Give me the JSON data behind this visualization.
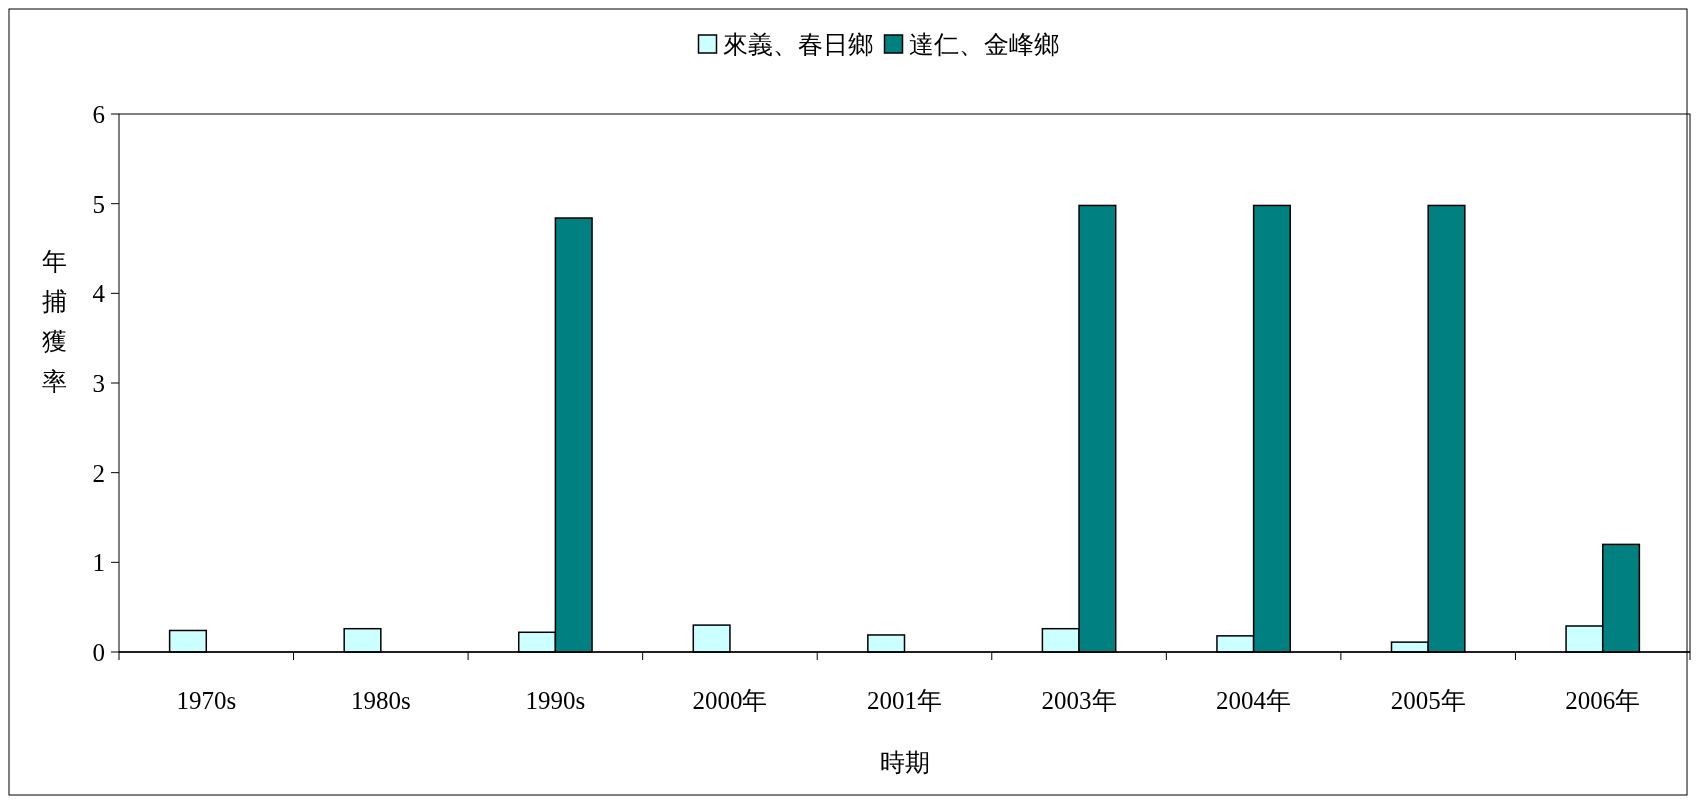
{
  "chart_data": {
    "type": "bar",
    "xlabel": "時期",
    "ylabel": "年捕獲率",
    "categories": [
      "1970s",
      "1980s",
      "1990s",
      "2000年",
      "2001年",
      "2003年",
      "2004年",
      "2005年",
      "2006年"
    ],
    "series": [
      {
        "name": "來義、春日鄉",
        "color": "#ccffff",
        "values": [
          0.24,
          0.26,
          0.22,
          0.3,
          0.19,
          0.26,
          0.18,
          0.11,
          0.29
        ]
      },
      {
        "name": "達仁、金峰鄉",
        "color": "#008080",
        "values": [
          0,
          0,
          4.84,
          0,
          0,
          4.98,
          4.98,
          4.98,
          1.2
        ]
      }
    ],
    "ylim": [
      0,
      6
    ],
    "yticks": [
      0,
      1,
      2,
      3,
      4,
      5,
      6
    ],
    "legend": "top",
    "grid": false
  }
}
